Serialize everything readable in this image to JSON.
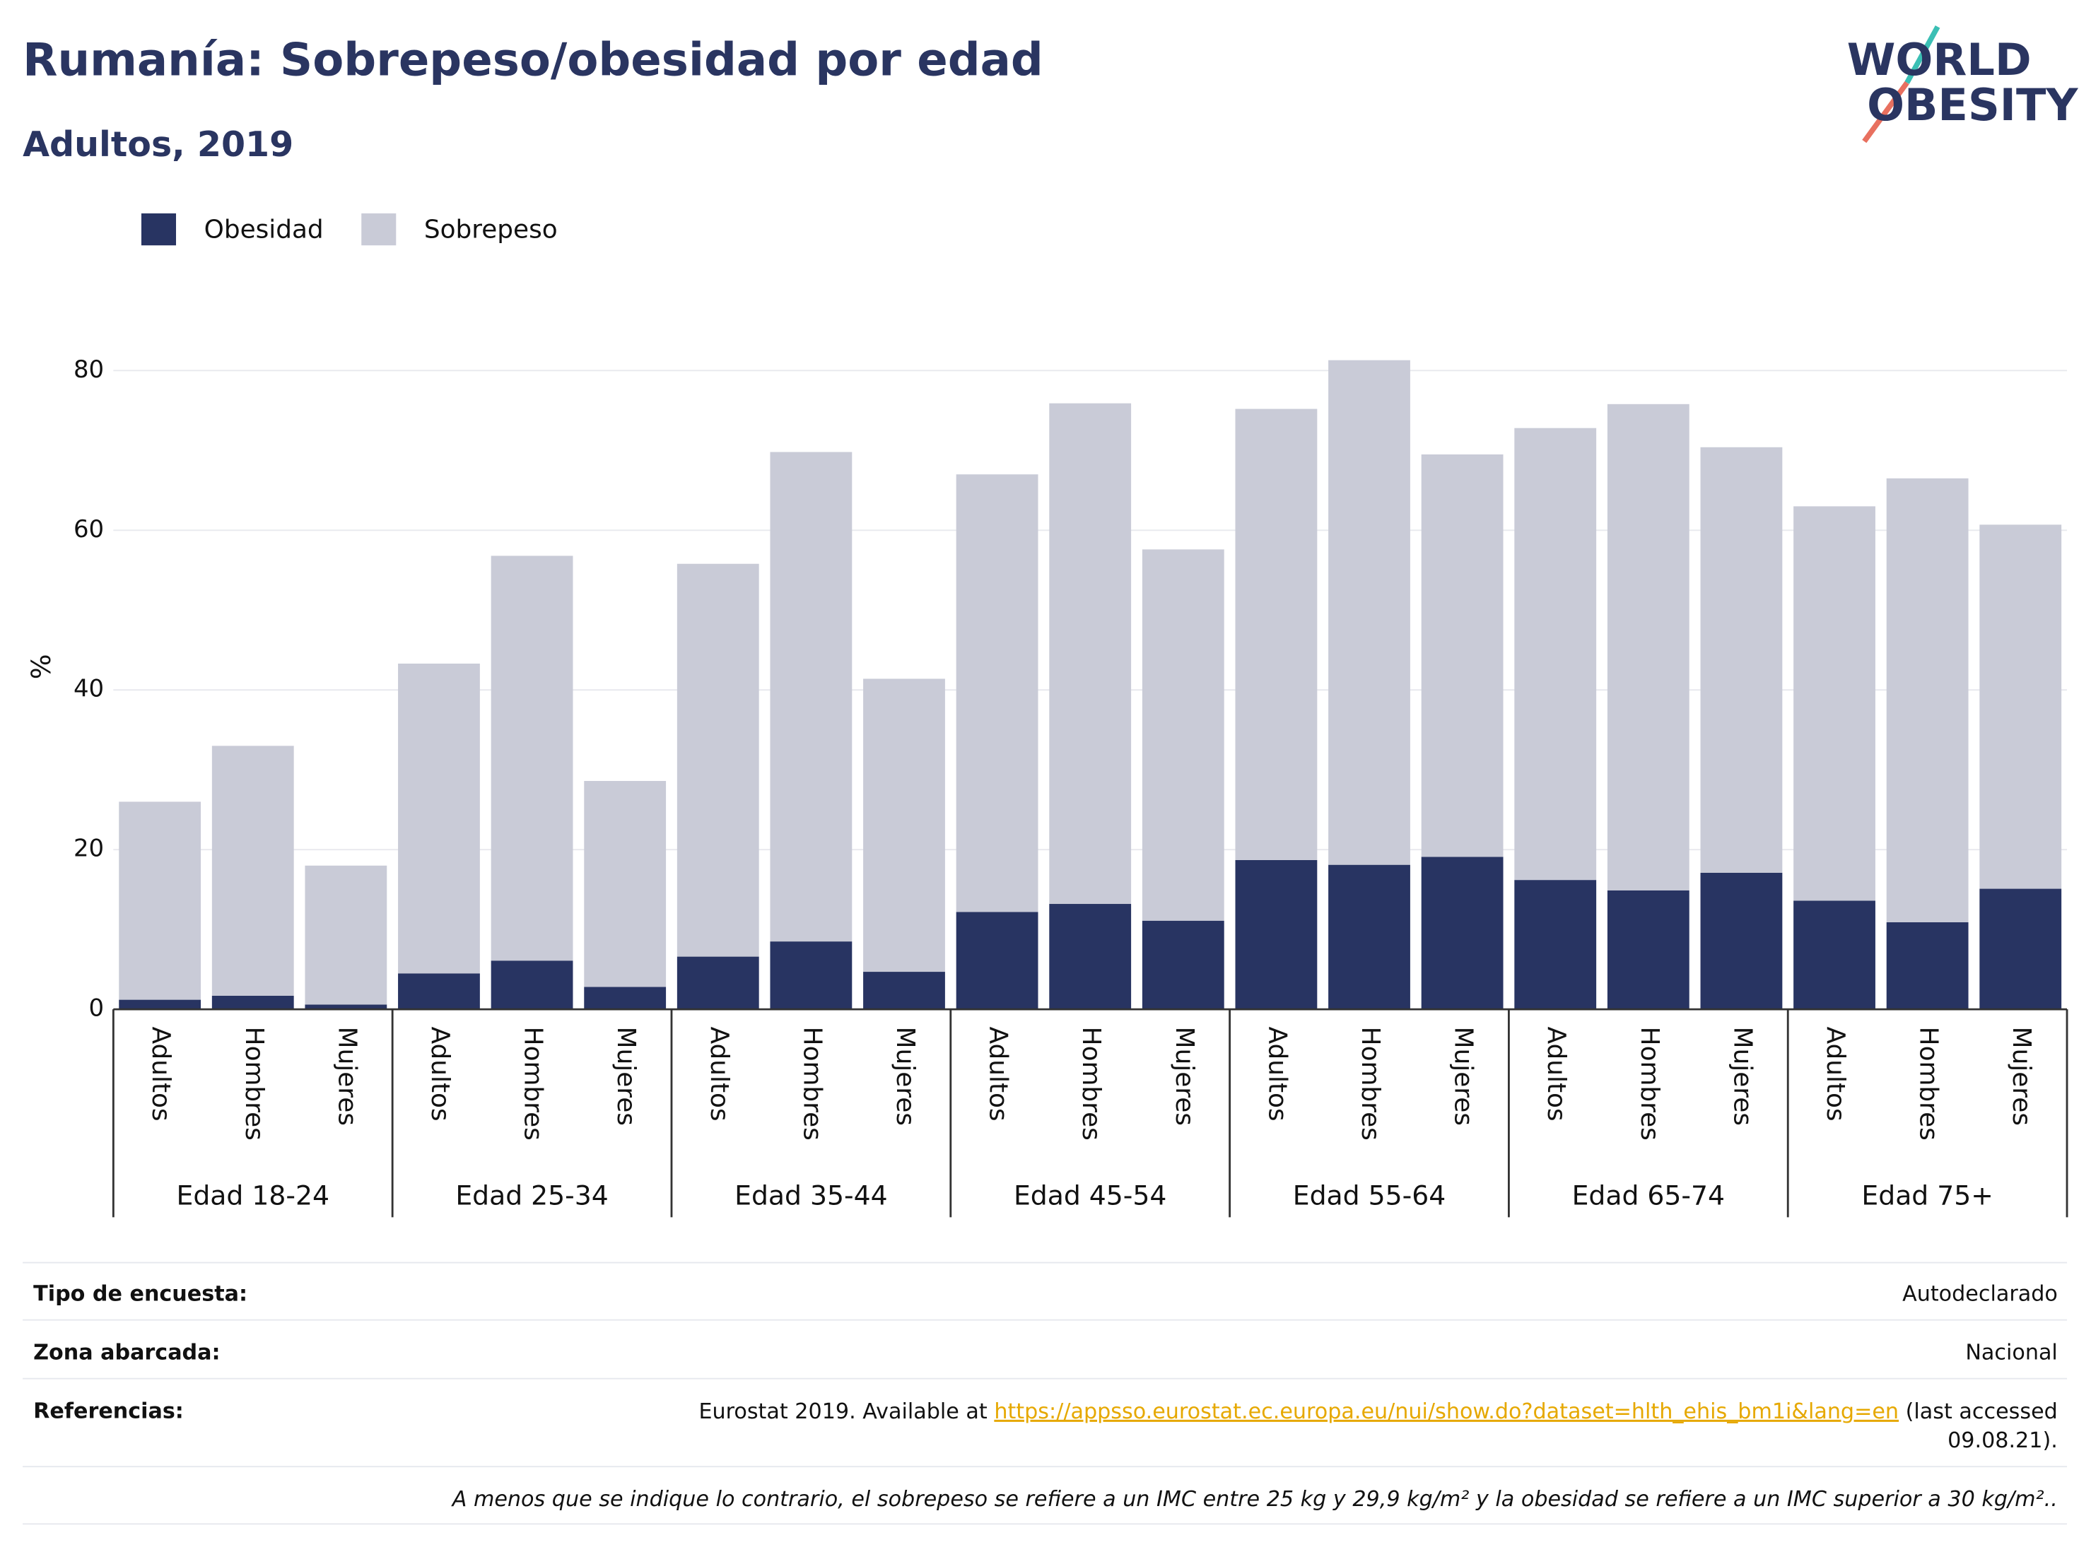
{
  "chart_data": {
    "type": "bar",
    "stacked": true,
    "title": "Rumanía: Sobrepeso/obesidad por edad",
    "subtitle": "Adultos, 2019",
    "y_label": "%",
    "categories": [
      "Adultos",
      "Hombres",
      "Mujeres",
      "Adultos",
      "Hombres",
      "Mujeres",
      "Adultos",
      "Hombres",
      "Mujeres",
      "Adultos",
      "Hombres",
      "Mujeres",
      "Adultos",
      "Hombres",
      "Mujeres",
      "Adultos",
      "Hombres",
      "Mujeres",
      "Adultos",
      "Hombres",
      "Mujeres"
    ],
    "groups": [
      "Edad 18-24",
      "Edad 25-34",
      "Edad 35-44",
      "Edad 45-54",
      "Edad 55-64",
      "Edad 65-74",
      "Edad 75+"
    ],
    "series": [
      {
        "name": "Obesidad",
        "color": "#283462",
        "values": [
          1.2,
          1.7,
          0.6,
          4.5,
          6.1,
          2.8,
          6.6,
          8.5,
          4.7,
          12.2,
          13.2,
          11.1,
          18.7,
          18.1,
          19.1,
          16.2,
          14.9,
          17.1,
          13.6,
          10.9,
          15.1
        ]
      },
      {
        "name": "Sobrepeso",
        "color": "#c9cbd7",
        "values": [
          24.8,
          31.3,
          17.4,
          38.8,
          50.7,
          25.8,
          49.2,
          61.3,
          36.7,
          54.8,
          62.7,
          46.5,
          56.5,
          63.2,
          50.4,
          56.6,
          60.9,
          53.3,
          49.4,
          55.6,
          45.6
        ]
      }
    ],
    "ylim": [
      0,
      88
    ],
    "yticks": [
      0,
      20,
      40,
      60,
      80
    ],
    "grid": true,
    "legend": "top-left"
  },
  "logo": {
    "line1": "WORLD",
    "line2": "OBESITY"
  },
  "table": {
    "rows": [
      {
        "label": "Tipo de encuesta:",
        "value": "Autodeclarado"
      },
      {
        "label": "Zona abarcada:",
        "value": "Nacional"
      },
      {
        "label": "Referencias:",
        "value_prefix": "Eurostat 2019. Available at ",
        "link": "https://appsso.eurostat.ec.europa.eu/nui/show.do?dataset=hlth_ehis_bm1i&lang=en",
        "value_suffix": " (last accessed",
        "value_suffix2": "09.08.21)."
      }
    ]
  },
  "footnote": "A menos que se indique lo contrario, el sobrepeso se refiere a un IMC entre 25 kg y 29,9 kg/m² y la obesidad se refiere a un IMC superior a 30 kg/m².."
}
